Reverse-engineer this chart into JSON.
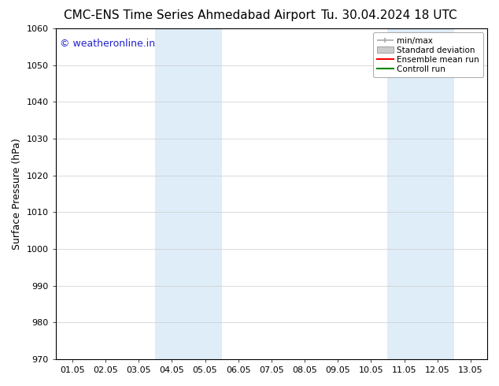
{
  "title_left": "CMC-ENS Time Series Ahmedabad Airport",
  "title_right": "Tu. 30.04.2024 18 UTC",
  "ylabel": "Surface Pressure (hPa)",
  "ylim": [
    970,
    1060
  ],
  "yticks": [
    970,
    980,
    990,
    1000,
    1010,
    1020,
    1030,
    1040,
    1050,
    1060
  ],
  "xlabels": [
    "01.05",
    "02.05",
    "03.05",
    "04.05",
    "05.05",
    "06.05",
    "07.05",
    "08.05",
    "09.05",
    "10.05",
    "11.05",
    "12.05",
    "13.05"
  ],
  "shaded_bands": [
    {
      "xstart": 3,
      "xend": 5,
      "color": "#deedf8"
    },
    {
      "xstart": 10,
      "xend": 12,
      "color": "#deedf8"
    }
  ],
  "watermark_text": "© weatheronline.in",
  "watermark_color": "#2222cc",
  "legend_items": [
    {
      "label": "min/max",
      "color": "#aaaaaa",
      "style": "minmax"
    },
    {
      "label": "Standard deviation",
      "color": "#cccccc",
      "style": "std"
    },
    {
      "label": "Ensemble mean run",
      "color": "#ff0000",
      "style": "line"
    },
    {
      "label": "Controll run",
      "color": "#008800",
      "style": "line"
    }
  ],
  "bg_color": "#ffffff",
  "plot_bg_color": "#ffffff",
  "grid_color": "#cccccc",
  "spine_color": "#000000",
  "title_fontsize": 11,
  "tick_fontsize": 8,
  "ylabel_fontsize": 9,
  "watermark_fontsize": 9
}
